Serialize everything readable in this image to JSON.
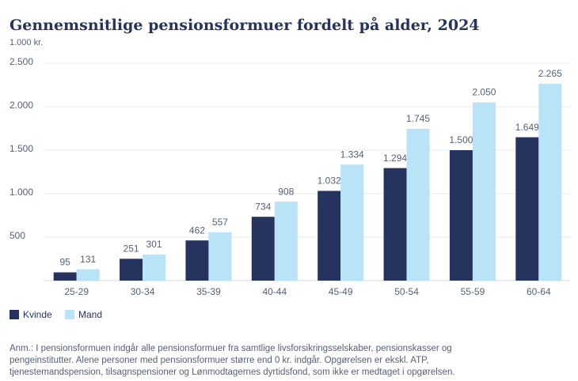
{
  "chart_data": {
    "type": "bar",
    "title": "Gennemsnitlige pensionsformuer fordelt på alder, 2024",
    "y_label": "1.000 kr.",
    "categories": [
      "25-29",
      "30-34",
      "35-39",
      "40-44",
      "45-49",
      "50-54",
      "55-59",
      "60-64"
    ],
    "series": [
      {
        "name": "Kvinde",
        "color": "#25335e",
        "values": [
          95,
          251,
          462,
          734,
          1032,
          1294,
          1500,
          1649
        ],
        "value_labels": [
          "95",
          "251",
          "462",
          "734",
          "1.032",
          "1.294",
          "1.500",
          "1.649"
        ]
      },
      {
        "name": "Mand",
        "color": "#b9e3f6",
        "values": [
          131,
          301,
          557,
          908,
          1334,
          1745,
          2050,
          2265
        ],
        "value_labels": [
          "131",
          "301",
          "557",
          "908",
          "1.334",
          "1.745",
          "2.050",
          "2.265"
        ]
      }
    ],
    "ylim": [
      0,
      2500
    ],
    "yticks": [
      500,
      {
        "value": 1000,
        "label": "1.000"
      },
      {
        "value": 1500,
        "label": "1.500"
      },
      {
        "value": 2000,
        "label": "2.000"
      },
      {
        "value": 2500,
        "label": "2.500"
      }
    ],
    "grid": true,
    "note": [
      "Anm.: I pensionsformuen indgår alle pensionsformuer fra samtlige livsforsikringsselskaber, pensionskasser og",
      "pengeinstitutter. Alene personer med pensionsformuer større end 0 kr. indgår. Opgørelsen er ekskl. ATP,",
      "tjenestemandspension, tilsagnspensioner og Lønmodtagernes dyrtidsfond, som ikke er medtaget i opgørelsen."
    ]
  }
}
